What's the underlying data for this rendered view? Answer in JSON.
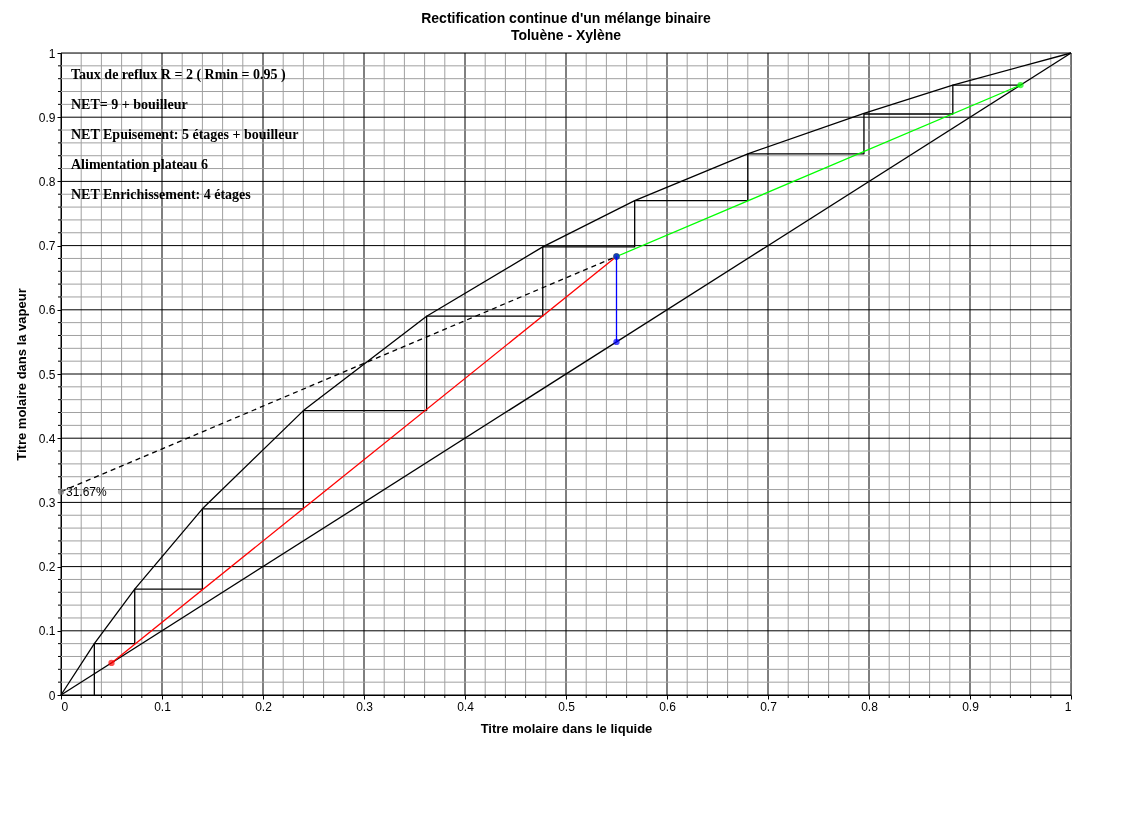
{
  "chart_data": {
    "type": "line",
    "title": "Rectification continue d'un mélange binaire",
    "subtitle": "Toluène - Xylène",
    "xlabel": "Titre molaire dans le liquide",
    "ylabel": "Titre molaire dans la vapeur",
    "xlim": [
      0,
      1
    ],
    "ylim": [
      0,
      1
    ],
    "xticks": [
      0,
      {
        "value": 0.02,
        "label": null
      },
      {
        "value": 0.04,
        "label": null
      },
      {
        "value": 0.06,
        "label": null
      },
      {
        "value": 0.08,
        "label": null
      },
      0.1,
      {
        "value": 0.12,
        "label": null
      },
      {
        "value": 0.14,
        "label": null
      },
      {
        "value": 0.16,
        "label": null
      },
      {
        "value": 0.18,
        "label": null
      },
      0.2,
      {
        "value": 0.22,
        "label": null
      },
      {
        "value": 0.24,
        "label": null
      },
      {
        "value": 0.26,
        "label": null
      },
      {
        "value": 0.28,
        "label": null
      },
      0.3,
      {
        "value": 0.32,
        "label": null
      },
      {
        "value": 0.34,
        "label": null
      },
      {
        "value": 0.36,
        "label": null
      },
      {
        "value": 0.38,
        "label": null
      },
      0.4,
      {
        "value": 0.42,
        "label": null
      },
      {
        "value": 0.44,
        "label": null
      },
      {
        "value": 0.46,
        "label": null
      },
      {
        "value": 0.48,
        "label": null
      },
      0.5,
      {
        "value": 0.52,
        "label": null
      },
      {
        "value": 0.54,
        "label": null
      },
      {
        "value": 0.56,
        "label": null
      },
      {
        "value": 0.58,
        "label": null
      },
      0.6,
      {
        "value": 0.62,
        "label": null
      },
      {
        "value": 0.64,
        "label": null
      },
      {
        "value": 0.66,
        "label": null
      },
      {
        "value": 0.68,
        "label": null
      },
      0.7,
      {
        "value": 0.72,
        "label": null
      },
      {
        "value": 0.74,
        "label": null
      },
      {
        "value": 0.76,
        "label": null
      },
      {
        "value": 0.78,
        "label": null
      },
      0.8,
      {
        "value": 0.82,
        "label": null
      },
      {
        "value": 0.84,
        "label": null
      },
      {
        "value": 0.86,
        "label": null
      },
      {
        "value": 0.88,
        "label": null
      },
      0.9,
      {
        "value": 0.92,
        "label": null
      },
      {
        "value": 0.94,
        "label": null
      },
      {
        "value": 0.96,
        "label": null
      },
      {
        "value": 0.98,
        "label": null
      },
      1
    ],
    "yticks": [
      0,
      {
        "value": 0.02,
        "label": null
      },
      {
        "value": 0.04,
        "label": null
      },
      {
        "value": 0.06,
        "label": null
      },
      {
        "value": 0.08,
        "label": null
      },
      0.1,
      {
        "value": 0.12,
        "label": null
      },
      {
        "value": 0.14,
        "label": null
      },
      {
        "value": 0.16,
        "label": null
      },
      {
        "value": 0.18,
        "label": null
      },
      0.2,
      {
        "value": 0.22,
        "label": null
      },
      {
        "value": 0.24,
        "label": null
      },
      {
        "value": 0.26,
        "label": null
      },
      {
        "value": 0.28,
        "label": null
      },
      0.3,
      {
        "value": 0.32,
        "label": null
      },
      {
        "value": 0.34,
        "label": null
      },
      {
        "value": 0.36,
        "label": null
      },
      {
        "value": 0.38,
        "label": null
      },
      0.4,
      {
        "value": 0.42,
        "label": null
      },
      {
        "value": 0.44,
        "label": null
      },
      {
        "value": 0.46,
        "label": null
      },
      {
        "value": 0.48,
        "label": null
      },
      0.5,
      {
        "value": 0.52,
        "label": null
      },
      {
        "value": 0.54,
        "label": null
      },
      {
        "value": 0.56,
        "label": null
      },
      {
        "value": 0.58,
        "label": null
      },
      0.6,
      {
        "value": 0.62,
        "label": null
      },
      {
        "value": 0.64,
        "label": null
      },
      {
        "value": 0.66,
        "label": null
      },
      {
        "value": 0.68,
        "label": null
      },
      0.7,
      {
        "value": 0.72,
        "label": null
      },
      {
        "value": 0.74,
        "label": null
      },
      {
        "value": 0.76,
        "label": null
      },
      {
        "value": 0.78,
        "label": null
      },
      0.8,
      {
        "value": 0.82,
        "label": null
      },
      {
        "value": 0.84,
        "label": null
      },
      {
        "value": 0.86,
        "label": null
      },
      {
        "value": 0.88,
        "label": null
      },
      0.9,
      {
        "value": 0.92,
        "label": null
      },
      {
        "value": 0.94,
        "label": null
      },
      {
        "value": 0.96,
        "label": null
      },
      {
        "value": 0.98,
        "label": null
      },
      1
    ],
    "grid": true,
    "series": [
      {
        "type": "line",
        "color": "#000000",
        "marker": "none",
        "line_style": "solid",
        "x": [
          0,
          1
        ],
        "values": [
          0,
          1
        ]
      },
      {
        "type": "line",
        "color": "#000000",
        "marker": "none",
        "line_style": "solid",
        "x": [
          0,
          0.033,
          0.073,
          0.14,
          0.24,
          0.362,
          0.477,
          0.568,
          0.68,
          0.795,
          0.883,
          1
        ],
        "values": [
          0,
          0.08,
          0.165,
          0.29,
          0.443,
          0.59,
          0.698,
          0.77,
          0.843,
          0.906,
          0.95,
          1
        ]
      },
      {
        "type": "line",
        "color": "#000000",
        "marker": "none",
        "line_style": "solid",
        "x": [
          0.95,
          0.883,
          0.883,
          0.795,
          0.795,
          0.68,
          0.68,
          0.568,
          0.568,
          0.477,
          0.477,
          0.362,
          0.362,
          0.24,
          0.24,
          0.14,
          0.14,
          0.073,
          0.073,
          0.033,
          0.033
        ],
        "values": [
          0.95,
          0.95,
          0.905,
          0.905,
          0.843,
          0.843,
          0.77,
          0.77,
          0.698,
          0.698,
          0.59,
          0.59,
          0.443,
          0.443,
          0.29,
          0.29,
          0.165,
          0.165,
          0.08,
          0.08,
          0
        ]
      },
      {
        "type": "line",
        "color": "#000000",
        "marker": "none",
        "line_style": "dashed",
        "x": [
          0,
          0.55
        ],
        "values": [
          0.3167,
          0.683
        ]
      },
      {
        "type": "line",
        "color": "#ff0000",
        "marker": "circle",
        "line_style": "solid",
        "x": [
          0.05,
          0.55
        ],
        "values": [
          0.05,
          0.683
        ]
      },
      {
        "type": "line",
        "color": "#00ff00",
        "marker": "circle",
        "line_style": "solid",
        "x": [
          0.55,
          0.95
        ],
        "values": [
          0.683,
          0.95
        ]
      },
      {
        "type": "line",
        "color": "#0000ff",
        "marker": "circle",
        "line_style": "solid",
        "x": [
          0.55,
          0.55
        ],
        "values": [
          0.55,
          0.683
        ]
      },
      {
        "type": "scatter",
        "color": "#808080",
        "marker": "circle",
        "x": [
          0
        ],
        "values": [
          0.3167
        ]
      }
    ],
    "annotations": [
      "Taux de reflux R = 2 ( Rmin = 0.95 )",
      "NET= 9 + bouilleur",
      "NET Epuisement: 5 étages + bouilleur",
      "Alimentation plateau 6",
      "NET Enrichissement: 4 étages",
      {
        "text": "31.67%",
        "x": 0,
        "y": 0.3167
      }
    ]
  }
}
